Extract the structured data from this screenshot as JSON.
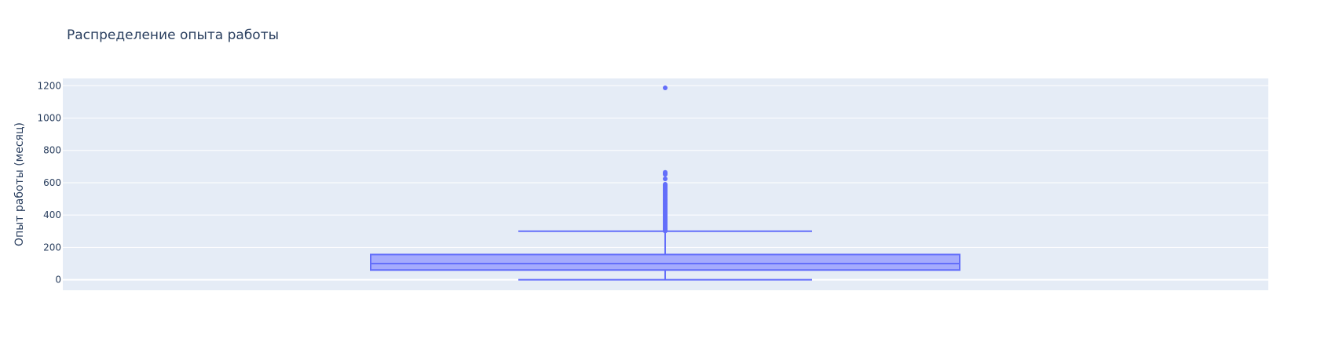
{
  "chart_data": {
    "type": "box",
    "title": "Распределение опыта работы",
    "xlabel": "",
    "ylabel": "Опыт работы (месяц)",
    "ylim": [
      -65,
      1245
    ],
    "yticks": [
      0,
      200,
      400,
      600,
      800,
      1000,
      1200
    ],
    "grid": true,
    "legend": "none",
    "series": [
      {
        "lower_fence": 0,
        "q1": 60,
        "median": 100,
        "q3": 156,
        "upper_fence": 300,
        "outliers": [
          302,
          308,
          315,
          322,
          330,
          338,
          345,
          352,
          360,
          368,
          375,
          382,
          390,
          398,
          405,
          412,
          420,
          428,
          435,
          442,
          450,
          458,
          465,
          472,
          480,
          488,
          495,
          502,
          510,
          518,
          525,
          532,
          540,
          548,
          555,
          562,
          570,
          578,
          584,
          590,
          624,
          652,
          658,
          664,
          1187
        ]
      }
    ],
    "colors": {
      "plot_bg": "#e5ecf6",
      "grid": "#ffffff",
      "box_line": "#636efa",
      "box_fill": "#a5abfd",
      "text": "#2a3f5f"
    }
  }
}
